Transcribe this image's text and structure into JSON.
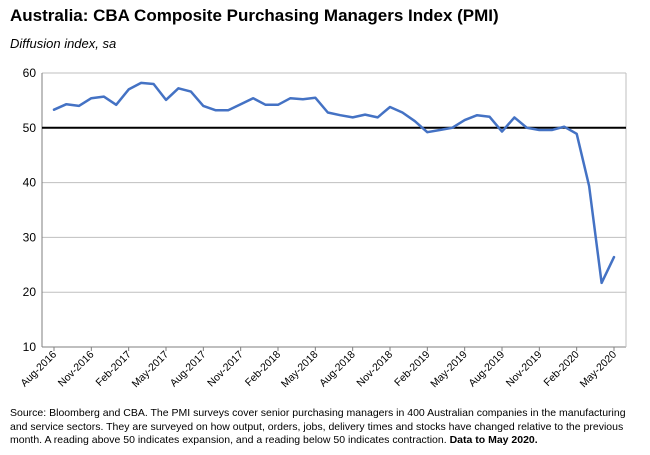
{
  "header": {
    "title": "Australia: CBA Composite Purchasing Managers Index (PMI)",
    "subtitle": "Diffusion index, sa"
  },
  "footnote": {
    "text": "Source: Bloomberg and CBA.  The PMI surveys cover senior purchasing managers in 400 Australian companies in the manufacturing and service sectors.  They are surveyed on how output, orders, jobs, delivery times and stocks have changed relative to the previous month.  A reading above 50 indicates expansion, and a reading below 50 indicates contraction. ",
    "emphasis": "Data to May 2020."
  },
  "chart_data": {
    "type": "line",
    "title": "Australia: CBA Composite Purchasing Managers Index (PMI)",
    "ylabel": "Diffusion index, sa",
    "xlabel": "",
    "ylim": [
      10,
      60
    ],
    "yticks": [
      10,
      20,
      30,
      40,
      50,
      60
    ],
    "reference_line": 50,
    "grid": true,
    "x": [
      "Aug-2016",
      "Sep-2016",
      "Oct-2016",
      "Nov-2016",
      "Dec-2016",
      "Jan-2017",
      "Feb-2017",
      "Mar-2017",
      "Apr-2017",
      "May-2017",
      "Jun-2017",
      "Jul-2017",
      "Aug-2017",
      "Sep-2017",
      "Oct-2017",
      "Nov-2017",
      "Dec-2017",
      "Jan-2018",
      "Feb-2018",
      "Mar-2018",
      "Apr-2018",
      "May-2018",
      "Jun-2018",
      "Jul-2018",
      "Aug-2018",
      "Sep-2018",
      "Oct-2018",
      "Nov-2018",
      "Dec-2018",
      "Jan-2019",
      "Feb-2019",
      "Mar-2019",
      "Apr-2019",
      "May-2019",
      "Jun-2019",
      "Jul-2019",
      "Aug-2019",
      "Sep-2019",
      "Oct-2019",
      "Nov-2019",
      "Dec-2019",
      "Jan-2020",
      "Feb-2020",
      "Mar-2020",
      "Apr-2020",
      "May-2020"
    ],
    "xtick_labels": [
      "Aug-2016",
      "Nov-2016",
      "Feb-2017",
      "May-2017",
      "Aug-2017",
      "Nov-2017",
      "Feb-2018",
      "May-2018",
      "Aug-2018",
      "Nov-2018",
      "Feb-2019",
      "May-2019",
      "Aug-2019",
      "Nov-2019",
      "Feb-2020",
      "May-2020"
    ],
    "series": [
      {
        "name": "Composite PMI",
        "color": "#4472C4",
        "values": [
          53.3,
          54.3,
          54.0,
          55.4,
          55.7,
          54.2,
          57.0,
          58.2,
          58.0,
          55.1,
          57.2,
          56.6,
          54.0,
          53.2,
          53.2,
          54.3,
          55.4,
          54.2,
          54.2,
          55.4,
          55.2,
          55.5,
          52.8,
          52.3,
          51.9,
          52.4,
          51.9,
          53.8,
          52.8,
          51.2,
          49.2,
          49.6,
          50.0,
          51.4,
          52.3,
          52.0,
          49.3,
          51.9,
          50.0,
          49.6,
          49.6,
          50.2,
          48.9,
          39.4,
          21.7,
          26.4
        ]
      }
    ]
  }
}
